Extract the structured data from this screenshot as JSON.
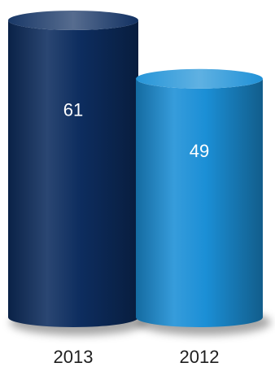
{
  "chart_data": {
    "type": "bar",
    "title": "",
    "xlabel": "",
    "ylabel": "",
    "categories": [
      "2013",
      "2012"
    ],
    "values": [
      61,
      49
    ],
    "data_labels": [
      "61",
      "49"
    ],
    "colors": [
      "#0d2d5f",
      "#1b8fd6"
    ],
    "ylim": [
      0,
      61
    ],
    "grid": false,
    "legend": "none",
    "style": "cylinder"
  }
}
